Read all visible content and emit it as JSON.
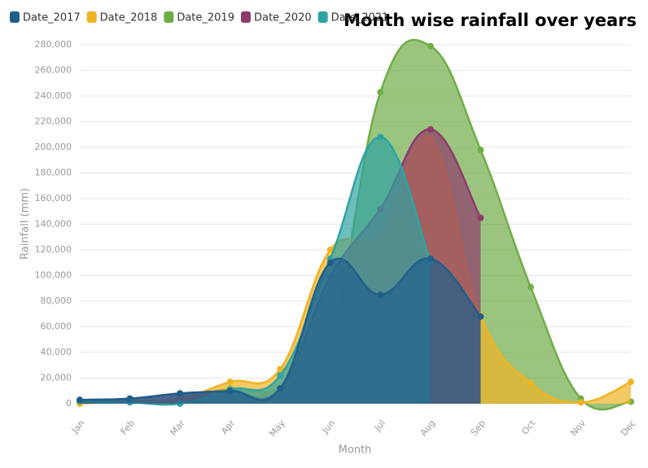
{
  "chart_data": {
    "type": "area",
    "title": "Month wise rainfall over years",
    "x_label": "Month",
    "y_label": "Rainfall (mm)",
    "categories": [
      "Jan",
      "Feb",
      "Mar",
      "Apr",
      "May",
      "Jun",
      "Jul",
      "Aug",
      "Sep",
      "Oct",
      "Nov",
      "Dec"
    ],
    "series": [
      {
        "name": "Date_2017",
        "color": "#1f5f8b",
        "values": [
          3000,
          4000,
          8000,
          10000,
          12000,
          110000,
          85000,
          113000,
          68000,
          null,
          null,
          null
        ]
      },
      {
        "name": "Date_2018",
        "color": "#f0b323",
        "values": [
          0,
          2000,
          4000,
          17000,
          27000,
          120000,
          132000,
          207000,
          69000,
          16000,
          1000,
          17000
        ]
      },
      {
        "name": "Date_2019",
        "color": "#70ad47",
        "values": [
          1000,
          2000,
          3000,
          12000,
          12000,
          51000,
          243000,
          279000,
          198000,
          91000,
          4000,
          1500
        ]
      },
      {
        "name": "Date_2020",
        "color": "#8e3a6d",
        "values": [
          3000,
          4000,
          8000,
          10000,
          12000,
          99000,
          152000,
          214000,
          145000,
          null,
          null,
          null
        ]
      },
      {
        "name": "Date_2021",
        "color": "#2fa3a3",
        "values": [
          2000,
          1000,
          0,
          11000,
          22000,
          113000,
          208000,
          111000,
          null,
          null,
          null,
          null
        ]
      }
    ],
    "ylim": [
      0,
      280000
    ],
    "yticks": [
      0,
      {
        "value": 20000,
        "label": "20,000"
      },
      {
        "value": 40000,
        "label": "40,000"
      },
      {
        "value": 60000,
        "label": "60,000"
      },
      {
        "value": 80000,
        "label": "80,000"
      },
      {
        "value": 100000,
        "label": "100,000"
      },
      {
        "value": 120000,
        "label": "120,000"
      },
      {
        "value": 140000,
        "label": "140,000"
      },
      {
        "value": 160000,
        "label": "160,000"
      },
      {
        "value": 180000,
        "label": "180,000"
      },
      {
        "value": 200000,
        "label": "200,000"
      },
      {
        "value": 220000,
        "label": "220,000"
      },
      {
        "value": 240000,
        "label": "240,000"
      },
      {
        "value": 260000,
        "label": "260,000"
      },
      {
        "value": 280000,
        "label": "280,000"
      }
    ],
    "grid": true,
    "legend": "top-left"
  }
}
